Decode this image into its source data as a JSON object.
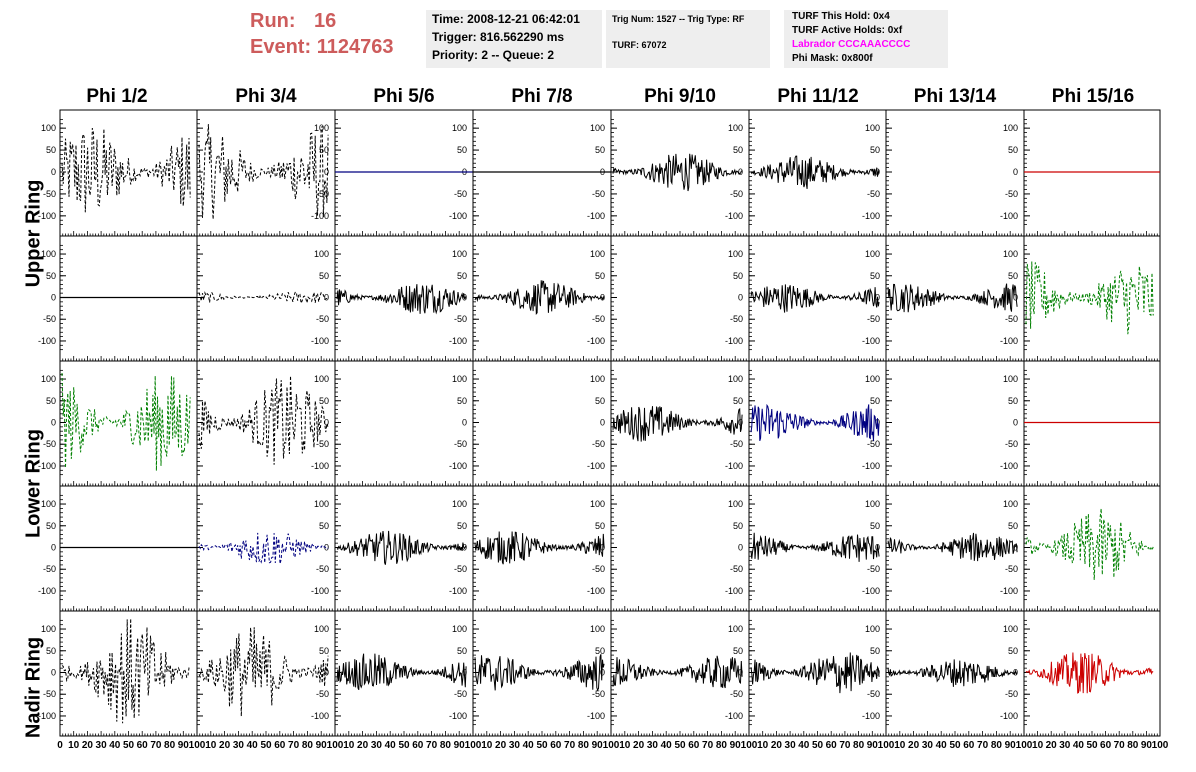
{
  "run_info": {
    "run_label": "Run:",
    "run_value": "16",
    "event_label": "Event:",
    "event_value": "1124763"
  },
  "time_box": {
    "time": "Time: 2008-12-21 06:42:01",
    "trigger": "Trigger: 816.562290 ms",
    "priority": "Priority: 2 -- Queue: 2"
  },
  "trig_box": {
    "trig": "Trig Num: 1527 -- Trig Type: RF",
    "turf": "TURF: 67072"
  },
  "turf_box": {
    "this_hold": "TURF This Hold: 0x4",
    "active_holds": "TURF Active Holds: 0xf",
    "labrador": "Labrador CCCAAACCCC",
    "phi_mask": "Phi Mask: 0x800f"
  },
  "phi_headers": [
    "Phi 1/2",
    "Phi 3/4",
    "Phi 5/6",
    "Phi 7/8",
    "Phi 9/10",
    "Phi 11/12",
    "Phi 13/14",
    "Phi 15/16"
  ],
  "ring_labels": {
    "upper": "Upper Ring",
    "lower": "Lower Ring",
    "nadir": "Nadir Ring"
  },
  "axis": {
    "y_ticks": [
      "100",
      "50",
      "0",
      "-50",
      "-100"
    ],
    "y_range": [
      -130,
      130
    ],
    "x_range": [
      0,
      100
    ],
    "x_tick_labels_first": "0 10 20 30 40 50 60 70 80 90 100",
    "x_tick_labels": "10 20 30 40 50 60 70 80 90 100"
  },
  "colors": {
    "black": "#000000",
    "blue": "#000080",
    "green": "#008000",
    "red": "#cc0000",
    "run_text": "#cd5c5c",
    "info_bg": "#eeeeee",
    "magenta": "#ff00ff"
  },
  "waveforms": [
    [
      [
        "dash",
        "#000000",
        120
      ],
      [
        "dash",
        "#000000",
        110
      ],
      [
        "flat",
        "#000080",
        0
      ],
      [
        "flat",
        "#000000",
        0
      ],
      [
        "solid",
        "#000000",
        45
      ],
      [
        "solid",
        "#000000",
        40
      ],
      [
        "none",
        "",
        0
      ],
      [
        "flat",
        "#cc0000",
        0
      ]
    ],
    [
      [
        "flat",
        "#000000",
        0
      ],
      [
        "dash",
        "#000000",
        15
      ],
      [
        "solid",
        "#000000",
        40
      ],
      [
        "solid",
        "#000000",
        40
      ],
      [
        "none",
        "",
        0
      ],
      [
        "solid",
        "#000000",
        35
      ],
      [
        "solid",
        "#000000",
        35
      ],
      [
        "dash",
        "#008000",
        90
      ]
    ],
    [
      [
        "dash",
        "#008000",
        120
      ],
      [
        "dash",
        "#000000",
        110
      ],
      [
        "none",
        "",
        0
      ],
      [
        "none",
        "",
        0
      ],
      [
        "solid",
        "#000000",
        45
      ],
      [
        "solid",
        "#000080",
        45
      ],
      [
        "none",
        "",
        0
      ],
      [
        "flat",
        "#cc0000",
        0
      ]
    ],
    [
      [
        "flat",
        "#000000",
        0
      ],
      [
        "dash",
        "#000080",
        45
      ],
      [
        "solid",
        "#000000",
        40
      ],
      [
        "solid",
        "#000000",
        40
      ],
      [
        "none",
        "",
        0
      ],
      [
        "solid",
        "#000000",
        35
      ],
      [
        "solid",
        "#000000",
        35
      ],
      [
        "dash",
        "#008000",
        90
      ]
    ],
    [
      [
        "dash",
        "#000000",
        130
      ],
      [
        "dash",
        "#000000",
        110
      ],
      [
        "solid",
        "#000000",
        45
      ],
      [
        "solid",
        "#000000",
        45
      ],
      [
        "solid",
        "#000000",
        40
      ],
      [
        "solid",
        "#000000",
        50
      ],
      [
        "solid",
        "#000000",
        35
      ],
      [
        "solid",
        "#cc0000",
        50
      ]
    ]
  ]
}
